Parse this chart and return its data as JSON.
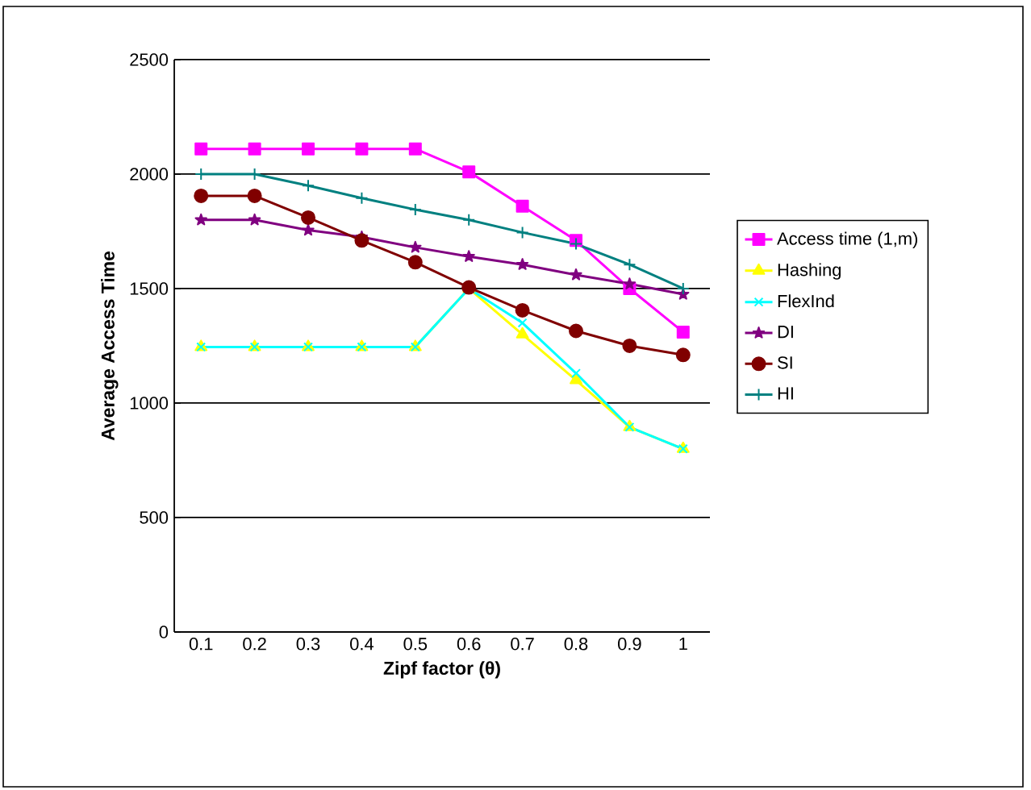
{
  "chart_data": {
    "type": "line",
    "xlabel": "Zipf factor (θ)",
    "ylabel": "Average Access Time",
    "categories": [
      "0.1",
      "0.2",
      "0.3",
      "0.4",
      "0.5",
      "0.6",
      "0.7",
      "0.8",
      "0.9",
      "1"
    ],
    "series": [
      {
        "name": "Access time (1,m)",
        "color": "#ff00ff",
        "marker": "square",
        "values": [
          2110,
          2110,
          2110,
          2110,
          2110,
          2010,
          1860,
          1710,
          1500,
          1310
        ]
      },
      {
        "name": "Hashing",
        "color": "#ffff00",
        "marker": "triangle",
        "values": [
          1245,
          1245,
          1245,
          1245,
          1245,
          1500,
          1300,
          1100,
          895,
          800
        ]
      },
      {
        "name": "FlexInd",
        "color": "#00ffff",
        "marker": "cross",
        "values": [
          1245,
          1245,
          1245,
          1245,
          1245,
          1500,
          1350,
          1130,
          895,
          800
        ]
      },
      {
        "name": "DI",
        "color": "#800080",
        "marker": "star",
        "values": [
          1800,
          1800,
          1755,
          1725,
          1680,
          1640,
          1605,
          1560,
          1520,
          1475
        ]
      },
      {
        "name": "SI",
        "color": "#800000",
        "marker": "circle",
        "values": [
          1905,
          1905,
          1810,
          1710,
          1615,
          1505,
          1405,
          1315,
          1250,
          1210
        ]
      },
      {
        "name": "HI",
        "color": "#008080",
        "marker": "plus",
        "values": [
          2000,
          2000,
          1950,
          1895,
          1845,
          1800,
          1745,
          1695,
          1605,
          1500
        ]
      }
    ],
    "ylim": [
      0,
      2500
    ],
    "yticks": [
      0,
      500,
      1000,
      1500,
      2000,
      2500
    ],
    "grid": "y",
    "legend": "right",
    "line_style": "solid"
  }
}
